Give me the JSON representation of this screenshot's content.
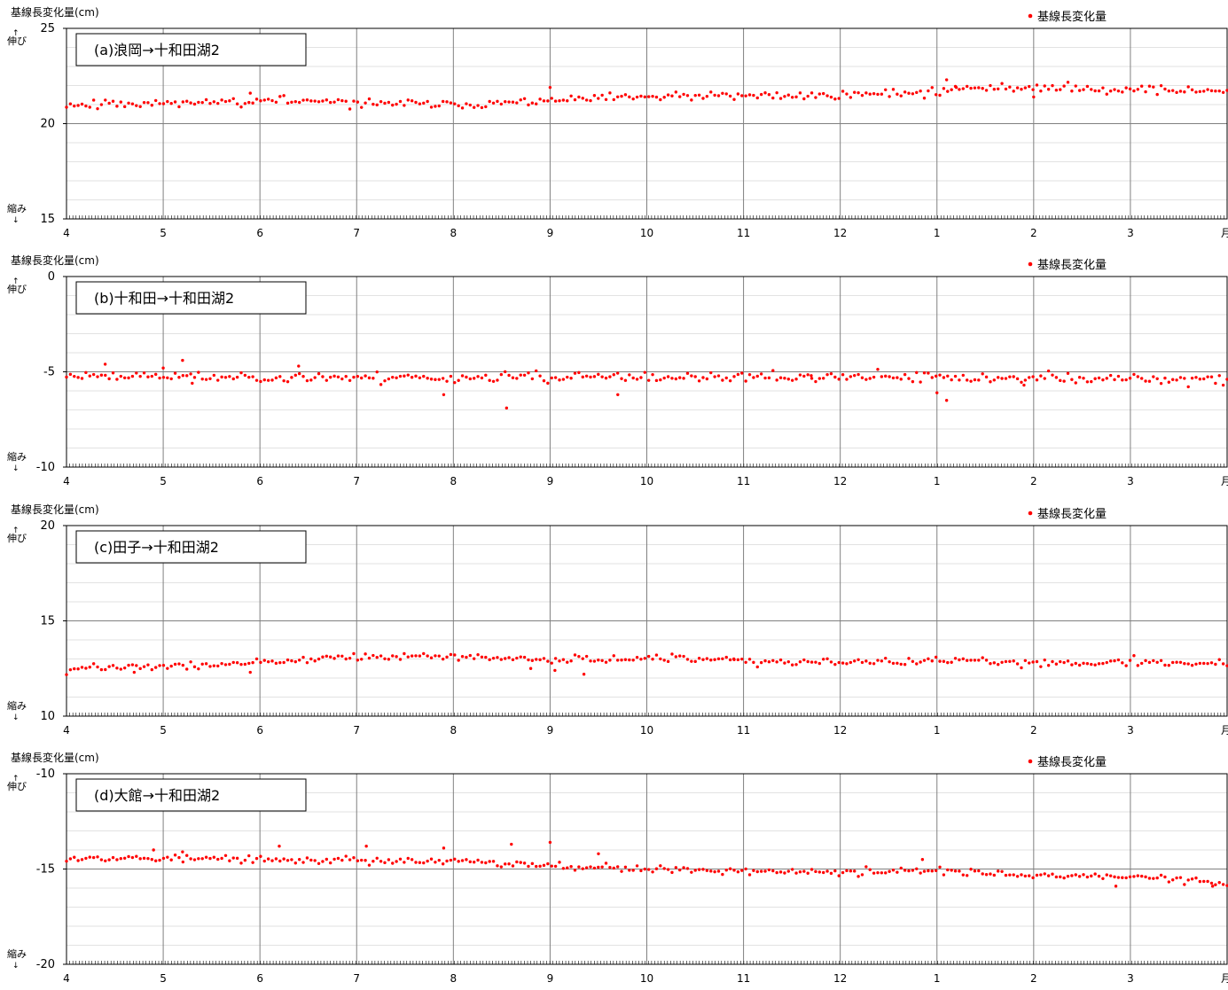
{
  "chart_data": [
    {
      "type": "scatter",
      "panel_label": "(a)浪岡→十和田湖2",
      "ylabel": "基線長変化量(cm)",
      "legend": "基線長変化量",
      "stretch_label": "伸び",
      "shrink_label": "縮み",
      "month_unit": "月",
      "x_ticks": [
        "4",
        "5",
        "6",
        "7",
        "8",
        "9",
        "10",
        "11",
        "12",
        "1",
        "2",
        "3"
      ],
      "y_ticks": [
        "25",
        "20",
        "15"
      ],
      "ylim": [
        15,
        25
      ],
      "grid": true,
      "legend_position": "top-right",
      "series": [
        {
          "name": "基線長変化量",
          "trend": [
            [
              0,
              21.0
            ],
            [
              2,
              21.2
            ],
            [
              4,
              21.0
            ],
            [
              5,
              21.2
            ],
            [
              6,
              21.4
            ],
            [
              8,
              21.5
            ],
            [
              9,
              21.7
            ],
            [
              9.5,
              21.9
            ],
            [
              10,
              21.9
            ],
            [
              11,
              21.8
            ],
            [
              12,
              21.7
            ]
          ],
          "noise": 0.18,
          "outliers": [
            [
              1.9,
              21.6
            ],
            [
              5.0,
              21.9
            ],
            [
              9.1,
              22.3
            ],
            [
              9.2,
              21.9
            ],
            [
              10.0,
              21.4
            ]
          ],
          "seed": 11
        }
      ]
    },
    {
      "type": "scatter",
      "panel_label": "(b)十和田→十和田湖2",
      "ylabel": "基線長変化量(cm)",
      "legend": "基線長変化量",
      "stretch_label": "伸び",
      "shrink_label": "縮み",
      "month_unit": "月",
      "x_ticks": [
        "4",
        "5",
        "6",
        "7",
        "8",
        "9",
        "10",
        "11",
        "12",
        "1",
        "2",
        "3"
      ],
      "y_ticks": [
        "0",
        "-5",
        "-10"
      ],
      "ylim": [
        -10,
        0
      ],
      "grid": true,
      "legend_position": "top-right",
      "series": [
        {
          "name": "基線長変化量",
          "trend": [
            [
              0,
              -5.2
            ],
            [
              3,
              -5.3
            ],
            [
              6,
              -5.3
            ],
            [
              9,
              -5.3
            ],
            [
              12,
              -5.4
            ]
          ],
          "noise": 0.2,
          "outliers": [
            [
              0.4,
              -4.6
            ],
            [
              1.0,
              -4.8
            ],
            [
              1.2,
              -4.4
            ],
            [
              1.3,
              -5.6
            ],
            [
              2.4,
              -4.7
            ],
            [
              3.9,
              -6.2
            ],
            [
              4.55,
              -6.9
            ],
            [
              5.7,
              -6.2
            ],
            [
              7.7,
              -5.2
            ],
            [
              9.0,
              -6.1
            ],
            [
              9.1,
              -6.5
            ],
            [
              9.9,
              -5.7
            ]
          ],
          "seed": 23
        }
      ]
    },
    {
      "type": "scatter",
      "panel_label": "(c)田子→十和田湖2",
      "ylabel": "基線長変化量(cm)",
      "legend": "基線長変化量",
      "stretch_label": "伸び",
      "shrink_label": "縮み",
      "month_unit": "月",
      "x_ticks": [
        "4",
        "5",
        "6",
        "7",
        "8",
        "9",
        "10",
        "11",
        "12",
        "1",
        "2",
        "3"
      ],
      "y_ticks": [
        "20",
        "15",
        "10"
      ],
      "ylim": [
        10,
        20
      ],
      "grid": true,
      "legend_position": "top-right",
      "series": [
        {
          "name": "基線長変化量",
          "trend": [
            [
              0,
              12.5
            ],
            [
              1,
              12.6
            ],
            [
              2,
              12.8
            ],
            [
              3,
              13.1
            ],
            [
              4,
              13.1
            ],
            [
              5,
              13.0
            ],
            [
              6,
              13.0
            ],
            [
              7,
              12.9
            ],
            [
              8,
              12.8
            ],
            [
              9,
              12.9
            ],
            [
              10,
              12.8
            ],
            [
              11,
              12.8
            ],
            [
              12,
              12.8
            ]
          ],
          "noise": 0.15,
          "outliers": [
            [
              0.7,
              12.3
            ],
            [
              1.9,
              12.3
            ],
            [
              4.8,
              12.5
            ],
            [
              5.05,
              12.4
            ],
            [
              5.35,
              12.2
            ],
            [
              6.9,
              13.0
            ]
          ],
          "seed": 37
        }
      ]
    },
    {
      "type": "scatter",
      "panel_label": "(d)大館→十和田湖2",
      "ylabel": "基線長変化量(cm)",
      "legend": "基線長変化量",
      "stretch_label": "伸び",
      "shrink_label": "縮み",
      "month_unit": "月",
      "x_ticks": [
        "4",
        "5",
        "6",
        "7",
        "8",
        "9",
        "10",
        "11",
        "12",
        "1",
        "2",
        "3"
      ],
      "y_ticks": [
        "-10",
        "-15",
        "-20"
      ],
      "ylim": [
        -20,
        -10
      ],
      "grid": true,
      "legend_position": "top-right",
      "series": [
        {
          "name": "基線長変化量",
          "trend": [
            [
              0,
              -14.4
            ],
            [
              2,
              -14.5
            ],
            [
              4,
              -14.6
            ],
            [
              5,
              -14.8
            ],
            [
              6,
              -15.0
            ],
            [
              7,
              -15.1
            ],
            [
              8,
              -15.2
            ],
            [
              9,
              -15.1
            ],
            [
              10,
              -15.3
            ],
            [
              11,
              -15.4
            ],
            [
              12,
              -15.7
            ]
          ],
          "noise": 0.15,
          "outliers": [
            [
              0.9,
              -14.0
            ],
            [
              2.2,
              -13.8
            ],
            [
              3.1,
              -13.8
            ],
            [
              3.9,
              -13.9
            ],
            [
              4.6,
              -13.7
            ],
            [
              5.0,
              -13.6
            ],
            [
              5.5,
              -14.2
            ],
            [
              1.2,
              -14.1
            ],
            [
              8.85,
              -14.5
            ],
            [
              10.85,
              -15.9
            ],
            [
              11.85,
              -15.9
            ]
          ],
          "seed": 53
        }
      ]
    }
  ]
}
